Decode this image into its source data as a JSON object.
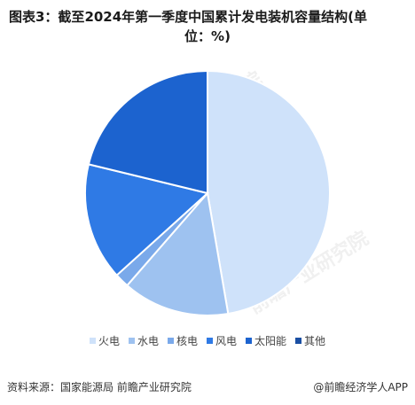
{
  "title_line1": "图表3：截至2024年第一季度中国累计发电装机容量结构(单",
  "title_line2": "位：%)",
  "chart_data": {
    "type": "pie",
    "title": "图表3：截至2024年第一季度中国累计发电装机容量结构(单位：%)",
    "unit": "%",
    "start_angle_deg": 0,
    "direction": "clockwise",
    "legend_position": "bottom",
    "categories": [
      "火电",
      "水电",
      "核电",
      "风电",
      "太阳能",
      "其他"
    ],
    "values": [
      47.3,
      14.1,
      1.9,
      15.5,
      21.2,
      0.0
    ],
    "colors": [
      "#cfe2fa",
      "#9ec2f0",
      "#7aa9ea",
      "#2f7ae5",
      "#1c63cf",
      "#1a4fa3"
    ]
  },
  "footer": {
    "source": "资料来源：国家能源局 前瞻产业研究院",
    "brand": "@前瞻经济学人APP"
  }
}
